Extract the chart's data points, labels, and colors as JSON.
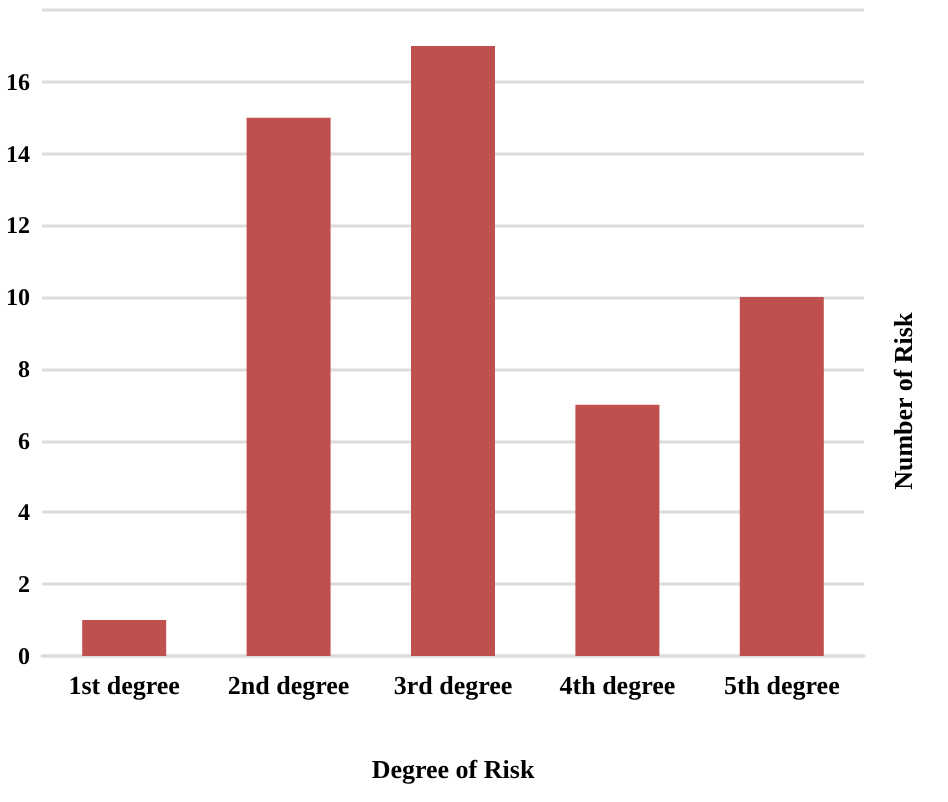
{
  "chart_data": {
    "type": "bar",
    "xlabel": "Degree of Risk",
    "ylabel": "Number of Risk",
    "categories": [
      "1st degree",
      "2nd degree",
      "3rd degree",
      "4th degree",
      "5th degree"
    ],
    "values": [
      1,
      15,
      17,
      7,
      10
    ],
    "color": "#c0504d",
    "ylim": [
      0,
      18
    ],
    "yticks": [
      0,
      2,
      4,
      6,
      8,
      10,
      12,
      14,
      16,
      {
        "value": 18,
        "label": null
      }
    ],
    "grid": "y"
  }
}
